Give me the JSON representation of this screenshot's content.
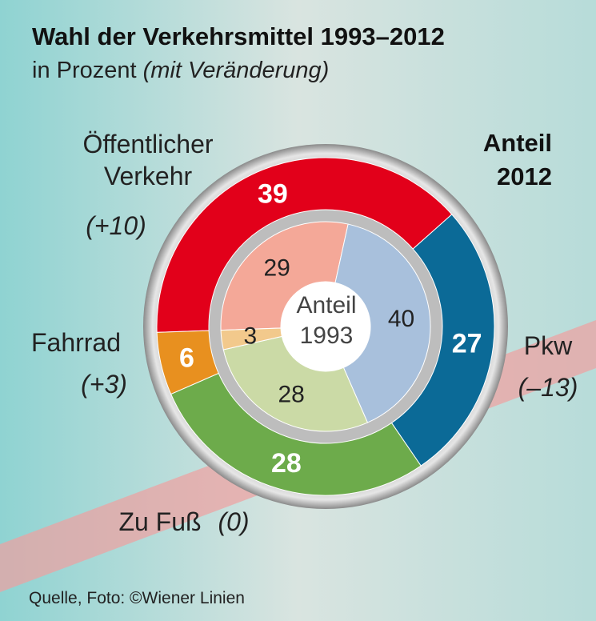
{
  "chart_data": {
    "type": "donut",
    "title": "Wahl der Verkehrsmittel 1993–2012",
    "subtitle": "in Prozent",
    "subtitle_note": "(mit Veränderung)",
    "categories": [
      "Öffentlicher Verkehr",
      "Pkw",
      "Zu Fuß",
      "Fahrrad"
    ],
    "change_labels": [
      "(+10)",
      "(–13)",
      "(0)",
      "(+3)"
    ],
    "series": [
      {
        "name": "Anteil 2012",
        "colors": [
          "#e2001a",
          "#0b6a97",
          "#6dab4b",
          "#e8901f"
        ],
        "values": [
          39,
          27,
          28,
          6
        ]
      },
      {
        "name": "Anteil 1993",
        "colors": [
          "#f4a898",
          "#a8c0dc",
          "#cbdaa6",
          "#f2c98c"
        ],
        "values": [
          29,
          40,
          28,
          3
        ]
      }
    ],
    "source": "Quelle, Foto: ©Wiener Linien"
  }
}
